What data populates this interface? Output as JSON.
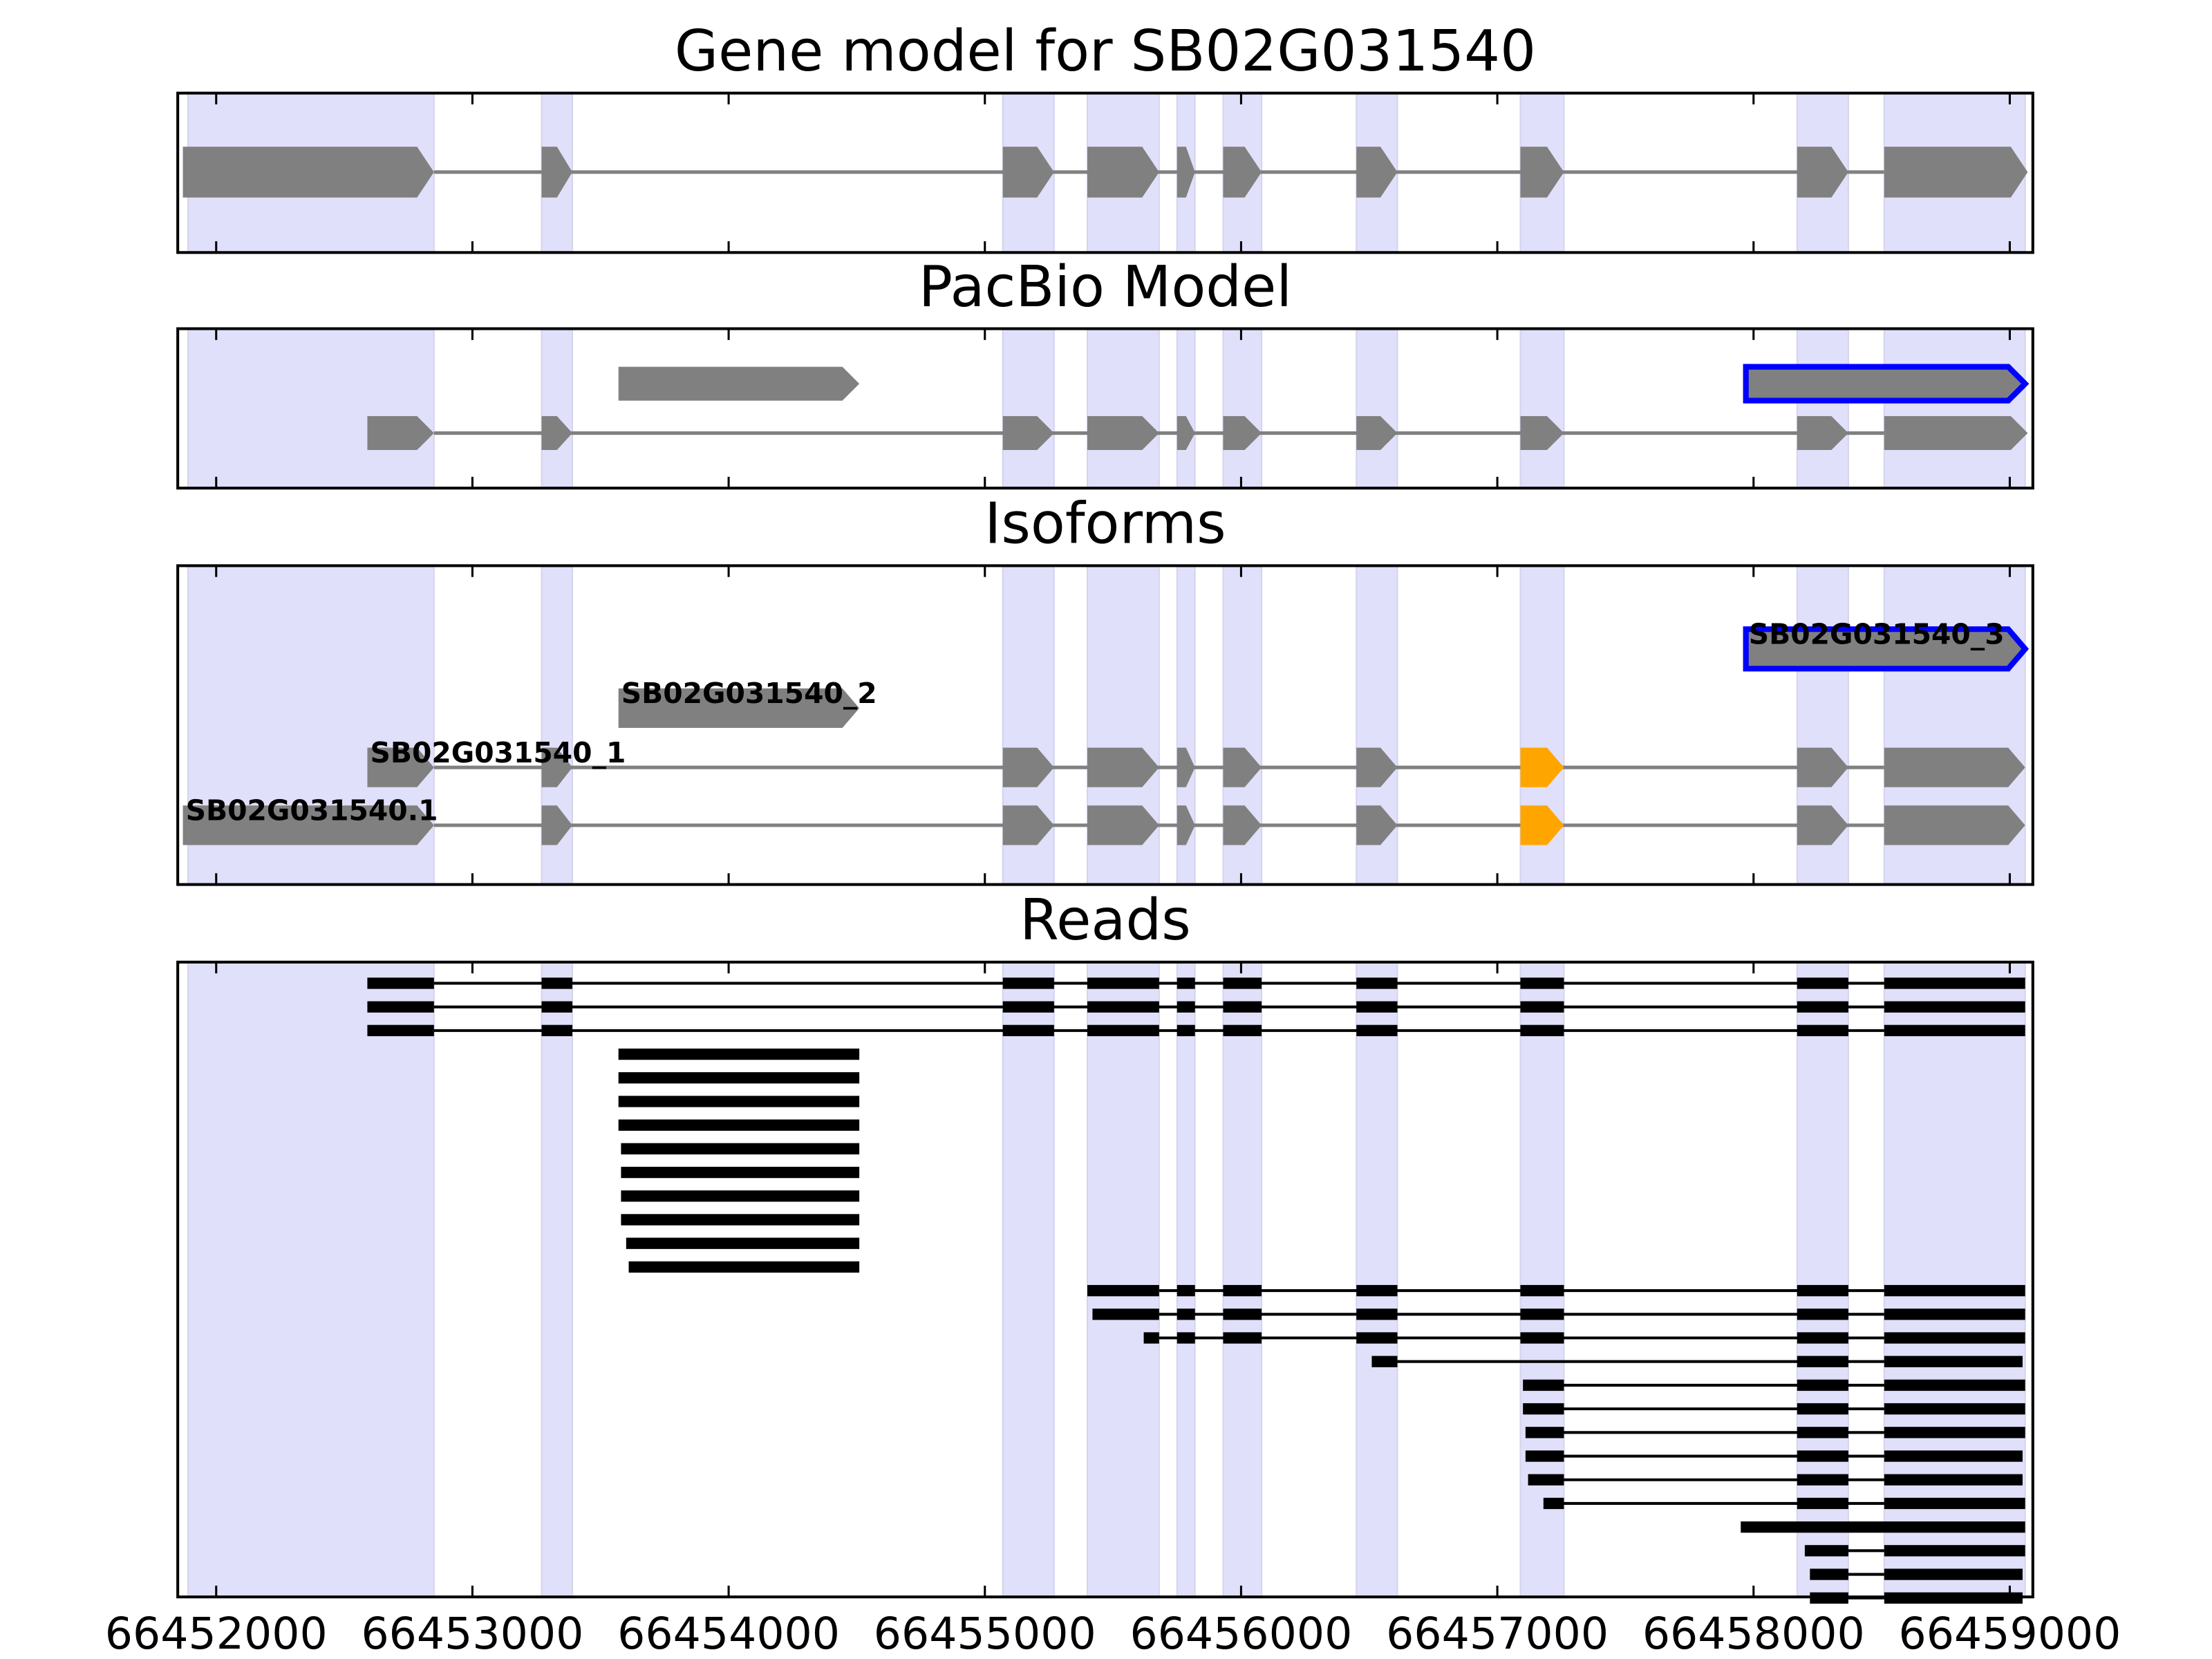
{
  "chart_data": [
    {
      "type": "gene-model",
      "title": "Gene model for SB02G031540",
      "xlim": [
        66451850,
        66459090
      ],
      "xticks": [
        66452000,
        66453000,
        66454000,
        66455000,
        66456000,
        66457000,
        66458000,
        66459000
      ],
      "region_color": "#e0e0fa",
      "exon_color": "#808080",
      "exon_regions": [
        [
          66451890,
          66452850
        ],
        [
          66453270,
          66453390
        ],
        [
          66455070,
          66455270
        ],
        [
          66455400,
          66455680
        ],
        [
          66455750,
          66455820
        ],
        [
          66455930,
          66456080
        ],
        [
          66456450,
          66456610
        ],
        [
          66457090,
          66457260
        ],
        [
          66458170,
          66458370
        ],
        [
          66458510,
          66459060
        ]
      ],
      "rows": [
        [
          {
            "exons": [
              [
                66451870,
                66452850
              ],
              [
                66453270,
                66453390
              ],
              [
                66455070,
                66455270
              ],
              [
                66455400,
                66455680
              ],
              [
                66455750,
                66455820
              ],
              [
                66455930,
                66456080
              ],
              [
                66456450,
                66456610
              ],
              [
                66457090,
                66457260
              ],
              [
                66458170,
                66458370
              ],
              [
                66458510,
                66459070
              ]
            ]
          }
        ]
      ]
    },
    {
      "type": "gene-model",
      "title": "PacBio Model",
      "xlim": [
        66451850,
        66459090
      ],
      "xticks": [
        66452000,
        66453000,
        66454000,
        66455000,
        66456000,
        66457000,
        66458000,
        66459000
      ],
      "region_color": "#e0e0fa",
      "exon_color": "#808080",
      "outline_color": "#0000ff",
      "exon_regions": [
        [
          66451890,
          66452850
        ],
        [
          66453270,
          66453390
        ],
        [
          66455070,
          66455270
        ],
        [
          66455400,
          66455680
        ],
        [
          66455750,
          66455820
        ],
        [
          66455930,
          66456080
        ],
        [
          66456450,
          66456610
        ],
        [
          66457090,
          66457260
        ],
        [
          66458170,
          66458370
        ],
        [
          66458510,
          66459060
        ]
      ],
      "rows": [
        [
          {
            "exons": [
              [
                66453570,
                66454510
              ]
            ]
          },
          {
            "exons": [
              [
                66457970,
                66459060
              ]
            ],
            "outlined": true
          }
        ],
        [
          {
            "exons": [
              [
                66452590,
                66452850
              ],
              [
                66453270,
                66453390
              ],
              [
                66455070,
                66455270
              ],
              [
                66455400,
                66455680
              ],
              [
                66455750,
                66455820
              ],
              [
                66455930,
                66456080
              ],
              [
                66456450,
                66456610
              ],
              [
                66457090,
                66457260
              ],
              [
                66458170,
                66458370
              ],
              [
                66458510,
                66459070
              ]
            ]
          }
        ]
      ]
    },
    {
      "type": "gene-model",
      "title": "Isoforms",
      "xlim": [
        66451850,
        66459090
      ],
      "xticks": [
        66452000,
        66453000,
        66454000,
        66455000,
        66456000,
        66457000,
        66458000,
        66459000
      ],
      "region_color": "#e0e0fa",
      "exon_color": "#808080",
      "outline_color": "#0000ff",
      "highlight_color": "#ffa500",
      "exon_regions": [
        [
          66451890,
          66452850
        ],
        [
          66453270,
          66453390
        ],
        [
          66455070,
          66455270
        ],
        [
          66455400,
          66455680
        ],
        [
          66455750,
          66455820
        ],
        [
          66455930,
          66456080
        ],
        [
          66456450,
          66456610
        ],
        [
          66457090,
          66457260
        ],
        [
          66458170,
          66458370
        ],
        [
          66458510,
          66459060
        ]
      ],
      "rows": [
        [
          {
            "name": "SB02G031540_3",
            "exons": [
              [
                66457970,
                66459060
              ]
            ],
            "outlined": true
          }
        ],
        [
          {
            "name": "SB02G031540_2",
            "exons": [
              [
                66453570,
                66454510
              ]
            ]
          }
        ],
        [
          {
            "name": "SB02G031540_1",
            "exons": [
              [
                66452590,
                66452850
              ],
              [
                66453270,
                66453390
              ],
              [
                66455070,
                66455270
              ],
              [
                66455400,
                66455680
              ],
              [
                66455750,
                66455820
              ],
              [
                66455930,
                66456080
              ],
              [
                66456450,
                66456610
              ],
              [
                66457090,
                66457260
              ],
              [
                66458170,
                66458370
              ],
              [
                66458510,
                66459060
              ]
            ],
            "highlight_exon": 7
          }
        ],
        [
          {
            "name": "SB02G031540.1",
            "exons": [
              [
                66451870,
                66452850
              ],
              [
                66453270,
                66453390
              ],
              [
                66455070,
                66455270
              ],
              [
                66455400,
                66455680
              ],
              [
                66455750,
                66455820
              ],
              [
                66455930,
                66456080
              ],
              [
                66456450,
                66456610
              ],
              [
                66457090,
                66457260
              ],
              [
                66458170,
                66458370
              ],
              [
                66458510,
                66459060
              ]
            ],
            "highlight_exon": 7
          }
        ]
      ]
    },
    {
      "type": "reads",
      "title": "Reads",
      "xlim": [
        66451850,
        66459090
      ],
      "xticks": [
        66452000,
        66453000,
        66454000,
        66455000,
        66456000,
        66457000,
        66458000,
        66459000
      ],
      "region_color": "#e0e0fa",
      "read_color": "#000000",
      "exon_regions": [
        [
          66451890,
          66452850
        ],
        [
          66453270,
          66453390
        ],
        [
          66455070,
          66455270
        ],
        [
          66455400,
          66455680
        ],
        [
          66455750,
          66455820
        ],
        [
          66455930,
          66456080
        ],
        [
          66456450,
          66456610
        ],
        [
          66457090,
          66457260
        ],
        [
          66458170,
          66458370
        ],
        [
          66458510,
          66459060
        ]
      ],
      "reads": [
        [
          [
            66452590,
            66452850
          ],
          [
            66453270,
            66453390
          ],
          [
            66455070,
            66455270
          ],
          [
            66455400,
            66455680
          ],
          [
            66455750,
            66455820
          ],
          [
            66455930,
            66456080
          ],
          [
            66456450,
            66456610
          ],
          [
            66457090,
            66457260
          ],
          [
            66458170,
            66458370
          ],
          [
            66458510,
            66459060
          ]
        ],
        [
          [
            66452590,
            66452850
          ],
          [
            66453270,
            66453390
          ],
          [
            66455070,
            66455270
          ],
          [
            66455400,
            66455680
          ],
          [
            66455750,
            66455820
          ],
          [
            66455930,
            66456080
          ],
          [
            66456450,
            66456610
          ],
          [
            66457090,
            66457260
          ],
          [
            66458170,
            66458370
          ],
          [
            66458510,
            66459060
          ]
        ],
        [
          [
            66452590,
            66452850
          ],
          [
            66453270,
            66453390
          ],
          [
            66455070,
            66455270
          ],
          [
            66455400,
            66455680
          ],
          [
            66455750,
            66455820
          ],
          [
            66455930,
            66456080
          ],
          [
            66456450,
            66456610
          ],
          [
            66457090,
            66457260
          ],
          [
            66458170,
            66458370
          ],
          [
            66458510,
            66459060
          ]
        ],
        [
          [
            66453570,
            66454510
          ]
        ],
        [
          [
            66453570,
            66454510
          ]
        ],
        [
          [
            66453570,
            66454510
          ]
        ],
        [
          [
            66453570,
            66454510
          ]
        ],
        [
          [
            66453580,
            66454510
          ]
        ],
        [
          [
            66453580,
            66454510
          ]
        ],
        [
          [
            66453580,
            66454510
          ]
        ],
        [
          [
            66453580,
            66454510
          ]
        ],
        [
          [
            66453600,
            66454510
          ]
        ],
        [
          [
            66453610,
            66454510
          ]
        ],
        [
          [
            66455400,
            66455680
          ],
          [
            66455750,
            66455820
          ],
          [
            66455930,
            66456080
          ],
          [
            66456450,
            66456610
          ],
          [
            66457090,
            66457260
          ],
          [
            66458170,
            66458370
          ],
          [
            66458510,
            66459060
          ]
        ],
        [
          [
            66455420,
            66455680
          ],
          [
            66455750,
            66455820
          ],
          [
            66455930,
            66456080
          ],
          [
            66456450,
            66456610
          ],
          [
            66457090,
            66457260
          ],
          [
            66458170,
            66458370
          ],
          [
            66458510,
            66459060
          ]
        ],
        [
          [
            66455620,
            66455680
          ],
          [
            66455750,
            66455820
          ],
          [
            66455930,
            66456080
          ],
          [
            66456450,
            66456610
          ],
          [
            66457090,
            66457260
          ],
          [
            66458170,
            66458370
          ],
          [
            66458510,
            66459060
          ]
        ],
        [
          [
            66456510,
            66456610
          ],
          [
            66458170,
            66458370
          ],
          [
            66458510,
            66459050
          ]
        ],
        [
          [
            66457100,
            66457260
          ],
          [
            66458170,
            66458370
          ],
          [
            66458510,
            66459060
          ]
        ],
        [
          [
            66457100,
            66457260
          ],
          [
            66458170,
            66458370
          ],
          [
            66458510,
            66459060
          ]
        ],
        [
          [
            66457110,
            66457260
          ],
          [
            66458170,
            66458370
          ],
          [
            66458510,
            66459060
          ]
        ],
        [
          [
            66457110,
            66457260
          ],
          [
            66458170,
            66458370
          ],
          [
            66458510,
            66459050
          ]
        ],
        [
          [
            66457120,
            66457260
          ],
          [
            66458170,
            66458370
          ],
          [
            66458510,
            66459050
          ]
        ],
        [
          [
            66457180,
            66457260
          ],
          [
            66458170,
            66458370
          ],
          [
            66458510,
            66459060
          ]
        ],
        [
          [
            66457950,
            66459060
          ]
        ],
        [
          [
            66458200,
            66458370
          ],
          [
            66458510,
            66459060
          ]
        ],
        [
          [
            66458220,
            66458370
          ],
          [
            66458510,
            66459050
          ]
        ],
        [
          [
            66458220,
            66458370
          ],
          [
            66458510,
            66459050
          ]
        ]
      ]
    }
  ]
}
